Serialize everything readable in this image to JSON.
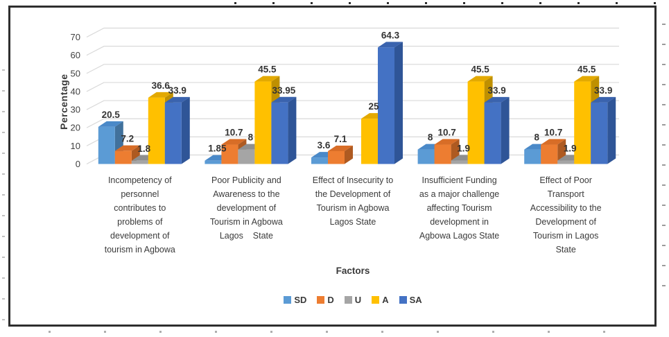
{
  "chart_data": {
    "type": "bar",
    "variant": "3d-clustered-column",
    "title": "",
    "xlabel": "Factors",
    "ylabel": "Percentage",
    "ylim": [
      0,
      70
    ],
    "ytick_step": 10,
    "grid": true,
    "legend_position": "bottom",
    "categories": [
      "Incompetency of personnel contributes to problems of development of tourism in Agbowa",
      "Poor Publicity and Awareness to the development of Tourism in Agbowa Lagos State",
      "Effect of Insecurity to the Development of Tourism in Agbowa Lagos State",
      "Insufficient Funding as a major challenge affecting Tourism development in Agbowa Lagos State",
      "Effect of Poor Transport Accessibility to the Development of Tourism in Lagos State"
    ],
    "category_lines": [
      [
        "Incompetency of",
        "personnel",
        "contributes to",
        "problems of",
        "development of",
        "tourism in Agbowa"
      ],
      [
        "Poor Publicity and",
        "Awareness to the",
        "development of",
        "Tourism in Agbowa",
        "Lagos    State"
      ],
      [
        "Effect of Insecurity to",
        "the Development of",
        "Tourism in Agbowa",
        "Lagos State"
      ],
      [
        "Insufficient Funding",
        "as a major challenge",
        "affecting Tourism",
        "development in",
        "Agbowa Lagos State"
      ],
      [
        "Effect of Poor",
        "Transport",
        "Accessibility to the",
        "Development of",
        "Tourism in Lagos",
        "State"
      ]
    ],
    "series": [
      {
        "name": "SD",
        "color": "#5B9BD5",
        "top_color": "#4A89C8",
        "side_color": "#41719C",
        "values": [
          20.5,
          1.85,
          3.6,
          8,
          8
        ],
        "labels": [
          "20.5",
          "1.85",
          "3.6",
          "8",
          "8"
        ]
      },
      {
        "name": "D",
        "color": "#ED7D31",
        "top_color": "#D86D27",
        "side_color": "#AE5A21",
        "values": [
          7.2,
          10.7,
          7.1,
          10.7,
          10.7
        ],
        "labels": [
          "7.2",
          "10.7",
          "7.1",
          "10.7",
          "10.7"
        ]
      },
      {
        "name": "U",
        "color": "#A5A5A5",
        "top_color": "#8F8F8F",
        "side_color": "#787878",
        "values": [
          1.8,
          8,
          0,
          1.9,
          1.9
        ],
        "labels": [
          "1.8",
          "8",
          "",
          "1.9",
          "1.9"
        ]
      },
      {
        "name": "A",
        "color": "#FFC000",
        "top_color": "#E3A900",
        "side_color": "#BF9000",
        "values": [
          36.6,
          45.5,
          25,
          45.5,
          45.5
        ],
        "labels": [
          "36.6",
          "45.5",
          "25",
          "45.5",
          "45.5"
        ]
      },
      {
        "name": "SA",
        "color": "#4472C4",
        "top_color": "#3A63AE",
        "side_color": "#2F5597",
        "values": [
          33.9,
          33.95,
          64.3,
          33.9,
          33.9
        ],
        "labels": [
          "33.9",
          "33.95",
          "64.3",
          "33.9",
          "33.9"
        ]
      }
    ]
  }
}
